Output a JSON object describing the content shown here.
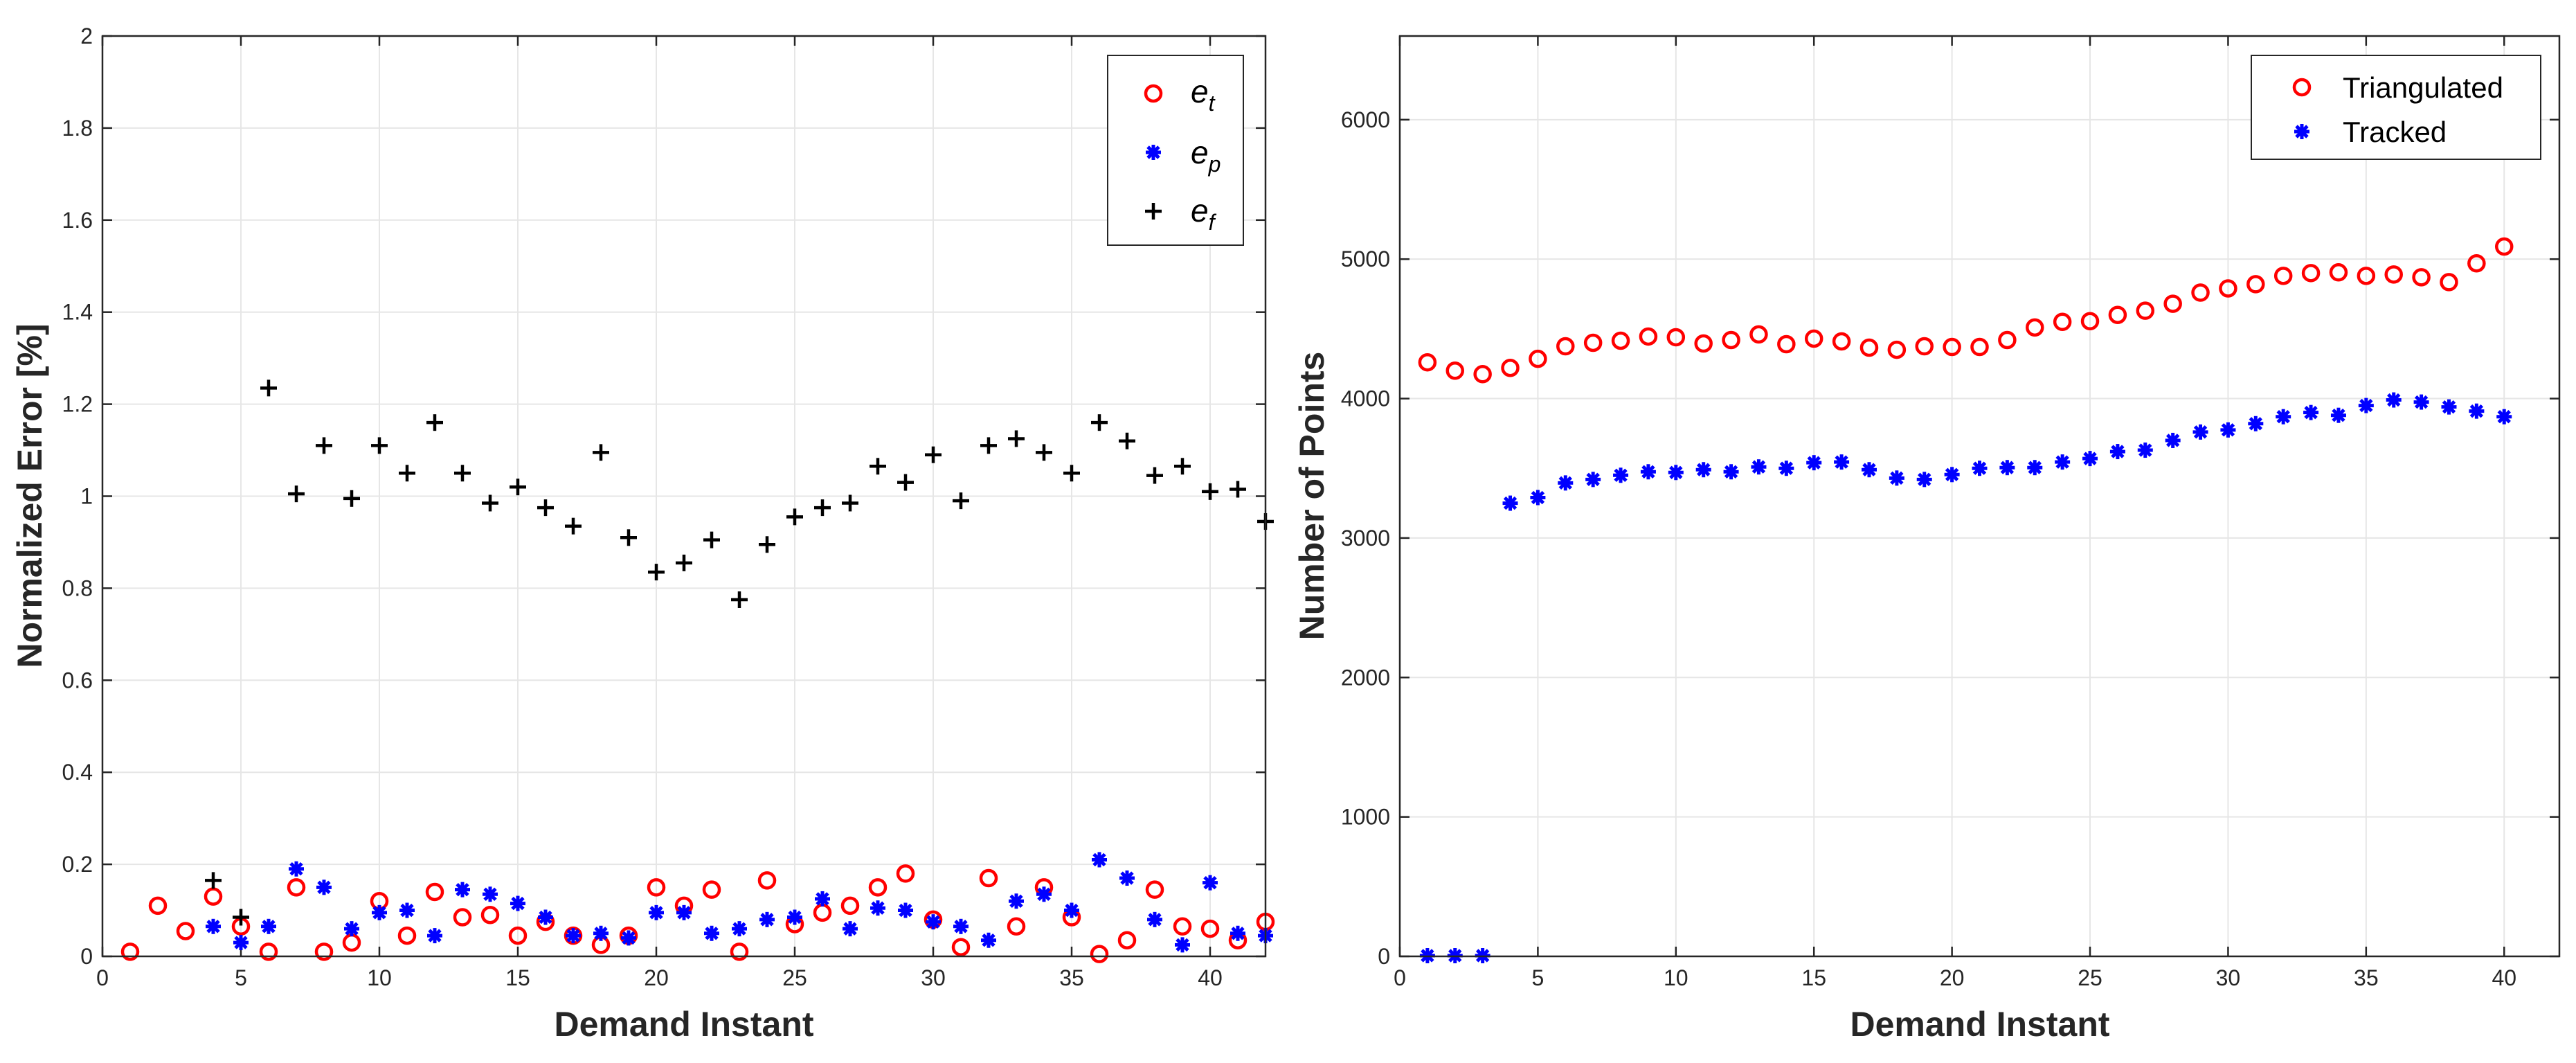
{
  "colors": {
    "red": "#ff0000",
    "blue": "#0000ff",
    "black": "#000000",
    "grid": "#e6e6e6",
    "axis": "#262626"
  },
  "chart_data": [
    {
      "type": "scatter",
      "xlabel": "Demand Instant",
      "ylabel": "Normalized Error [%]",
      "xlim": [
        0,
        42
      ],
      "ylim": [
        0,
        2
      ],
      "xticks": [
        "0",
        "5",
        "10",
        "15",
        "20",
        "25",
        "30",
        "35",
        "40"
      ],
      "yticks": [
        "0",
        "0.2",
        "0.4",
        "0.6",
        "0.8",
        "1",
        "1.2",
        "1.4",
        "1.6",
        "1.8",
        "2"
      ],
      "grid": true,
      "legend_position": "top-right",
      "series": [
        {
          "name": "e",
          "sub": "t",
          "marker": "circle",
          "color": "#ff0000",
          "x": [
            1,
            2,
            3,
            4,
            5,
            6,
            7,
            8,
            9,
            10,
            11,
            12,
            13,
            14,
            15,
            16,
            17,
            18,
            19,
            20,
            21,
            22,
            23,
            24,
            25,
            26,
            27,
            28,
            29,
            30,
            31,
            32,
            33,
            34,
            35,
            36,
            37,
            38,
            39,
            40,
            41,
            42
          ],
          "y": [
            0.01,
            0.11,
            0.055,
            0.13,
            0.065,
            0.01,
            0.15,
            0.01,
            0.03,
            0.12,
            0.045,
            0.14,
            0.085,
            0.09,
            0.045,
            0.075,
            0.045,
            0.025,
            0.045,
            0.15,
            0.11,
            0.145,
            0.01,
            0.165,
            0.07,
            0.095,
            0.11,
            0.15,
            0.18,
            0.08,
            0.02,
            0.17,
            0.065,
            0.15,
            0.085,
            0.005,
            0.035,
            0.145,
            0.065,
            0.06,
            0.035,
            0.075
          ]
        },
        {
          "name": "e",
          "sub": "p",
          "marker": "asterisk",
          "color": "#0000ff",
          "x": [
            4,
            5,
            6,
            7,
            8,
            9,
            10,
            11,
            12,
            13,
            14,
            15,
            16,
            17,
            18,
            19,
            20,
            21,
            22,
            23,
            24,
            25,
            26,
            27,
            28,
            29,
            30,
            31,
            32,
            33,
            34,
            35,
            36,
            37,
            38,
            39,
            40,
            41,
            42
          ],
          "y": [
            0.065,
            0.03,
            0.065,
            0.19,
            0.15,
            0.06,
            0.095,
            0.1,
            0.045,
            0.145,
            0.135,
            0.115,
            0.085,
            0.045,
            0.05,
            0.04,
            0.095,
            0.095,
            0.05,
            0.06,
            0.08,
            0.085,
            0.125,
            0.06,
            0.105,
            0.1,
            0.075,
            0.065,
            0.035,
            0.12,
            0.135,
            0.1,
            0.21,
            0.17,
            0.08,
            0.025,
            0.16,
            0.05,
            0.045
          ]
        },
        {
          "name": "e",
          "sub": "f",
          "marker": "plus",
          "color": "#000000",
          "x": [
            4,
            5,
            6,
            7,
            8,
            9,
            10,
            11,
            12,
            13,
            14,
            15,
            16,
            17,
            18,
            19,
            20,
            21,
            22,
            23,
            24,
            25,
            26,
            27,
            28,
            29,
            30,
            31,
            32,
            33,
            34,
            35,
            36,
            37,
            38,
            39,
            40,
            41,
            42
          ],
          "y": [
            0.165,
            0.085,
            1.235,
            1.005,
            1.11,
            0.995,
            1.11,
            1.05,
            1.16,
            1.05,
            0.985,
            1.02,
            0.975,
            0.935,
            1.095,
            0.91,
            0.835,
            0.855,
            0.905,
            0.775,
            0.895,
            0.955,
            0.975,
            0.985,
            1.065,
            1.03,
            1.09,
            0.99,
            1.11,
            1.125,
            1.095,
            1.05,
            1.16,
            1.12,
            1.045,
            1.065,
            1.01,
            1.015,
            0.945
          ]
        }
      ]
    },
    {
      "type": "scatter",
      "xlabel": "Demand Instant",
      "ylabel": "Number of Points",
      "xlim": [
        0,
        42
      ],
      "ylim": [
        0,
        6600
      ],
      "xticks": [
        "0",
        "5",
        "10",
        "15",
        "20",
        "25",
        "30",
        "35",
        "40"
      ],
      "yticks": [
        "0",
        "1000",
        "2000",
        "3000",
        "4000",
        "5000",
        "6000"
      ],
      "grid": true,
      "legend_position": "top-right",
      "series": [
        {
          "name": "Triangulated",
          "marker": "circle",
          "color": "#ff0000",
          "x": [
            1,
            2,
            3,
            4,
            5,
            6,
            7,
            8,
            9,
            10,
            11,
            12,
            13,
            14,
            15,
            16,
            17,
            18,
            19,
            20,
            21,
            22,
            23,
            24,
            25,
            26,
            27,
            28,
            29,
            30,
            31,
            32,
            33,
            34,
            35,
            36,
            37,
            38,
            39,
            40
          ],
          "y": [
            4260,
            4200,
            4175,
            4220,
            4285,
            4375,
            4400,
            4415,
            4445,
            4440,
            4395,
            4420,
            4460,
            4390,
            4430,
            4410,
            4365,
            4350,
            4375,
            4370,
            4370,
            4420,
            4510,
            4550,
            4555,
            4600,
            4630,
            4680,
            4760,
            4790,
            4820,
            4880,
            4900,
            4905,
            4880,
            4890,
            4870,
            4835,
            4970,
            5090
          ]
        },
        {
          "name": "Tracked",
          "marker": "asterisk",
          "color": "#0000ff",
          "x": [
            1,
            2,
            3,
            4,
            5,
            6,
            7,
            8,
            9,
            10,
            11,
            12,
            13,
            14,
            15,
            16,
            17,
            18,
            19,
            20,
            21,
            22,
            23,
            24,
            25,
            26,
            27,
            28,
            29,
            30,
            31,
            32,
            33,
            34,
            35,
            36,
            37,
            38,
            39,
            40
          ],
          "y": [
            5,
            5,
            5,
            3250,
            3290,
            3395,
            3420,
            3450,
            3475,
            3470,
            3490,
            3475,
            3510,
            3500,
            3540,
            3545,
            3490,
            3430,
            3420,
            3455,
            3500,
            3505,
            3505,
            3545,
            3570,
            3620,
            3630,
            3700,
            3760,
            3775,
            3820,
            3870,
            3900,
            3880,
            3950,
            3990,
            3975,
            3940,
            3910,
            3870
          ]
        }
      ]
    }
  ]
}
